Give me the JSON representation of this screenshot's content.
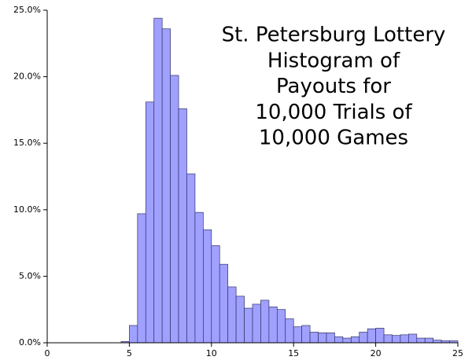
{
  "chart_data": {
    "type": "histogram",
    "title": [
      "St. Petersburg Lottery",
      "Histogram of",
      "Payouts for",
      "10,000 Trials of",
      "10,000 Games"
    ],
    "bins": [
      4.5,
      5,
      5.5,
      6,
      6.5,
      7,
      7.5,
      8,
      8.5,
      9,
      9.5,
      10,
      10.5,
      11,
      11.5,
      12,
      12.5,
      13,
      13.5,
      14,
      14.5,
      15,
      15.5,
      16,
      16.5,
      17,
      17.5,
      18,
      18.5,
      19,
      19.5,
      20,
      20.5,
      21,
      21.5,
      22,
      22.5,
      23,
      23.5,
      24,
      24.5,
      25
    ],
    "values": [
      0.1,
      1.3,
      9.7,
      18.1,
      24.4,
      23.6,
      20.1,
      17.6,
      12.7,
      9.8,
      8.5,
      7.3,
      5.9,
      4.2,
      3.5,
      2.6,
      2.9,
      3.2,
      2.7,
      2.5,
      1.8,
      1.2,
      1.3,
      0.8,
      0.75,
      0.75,
      0.45,
      0.35,
      0.45,
      0.8,
      1.05,
      1.1,
      0.6,
      0.55,
      0.6,
      0.65,
      0.35,
      0.35,
      0.2,
      0.15,
      0.15
    ],
    "color": "#a0a0ff",
    "edge_color": "#333366",
    "xlim": [
      0,
      25
    ],
    "xticks": [
      0,
      5,
      10,
      15,
      20,
      25
    ],
    "ylim": [
      0,
      25
    ],
    "yticks": [
      {
        "value": 0,
        "label": "0.0%"
      },
      {
        "value": 5,
        "label": "5.0%"
      },
      {
        "value": 10,
        "label": "10.0%"
      },
      {
        "value": 15,
        "label": "15.0%"
      },
      {
        "value": 20,
        "label": "20.0%"
      },
      {
        "value": 25,
        "label": "25.0%"
      }
    ]
  }
}
